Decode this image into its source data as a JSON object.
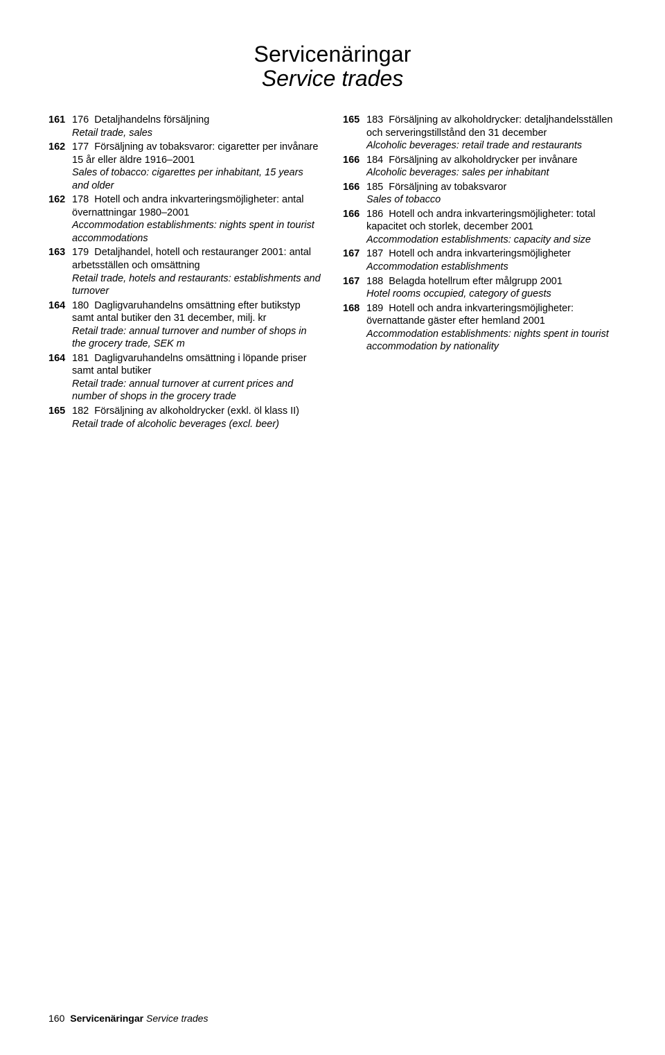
{
  "title": {
    "main": "Servicenäringar",
    "sub": "Service trades"
  },
  "left_column": [
    {
      "page": "161",
      "num": "176",
      "title": "Detaljhandelns försäljning",
      "sub": "Retail trade, sales"
    },
    {
      "page": "162",
      "num": "177",
      "title": "Försäljning av tobaksvaror: cigaretter per invånare 15 år eller äldre 1916–2001",
      "sub": "Sales of tobacco: cigarettes per inhabitant, 15 years and older"
    },
    {
      "page": "162",
      "num": "178",
      "title": "Hotell och andra inkvarteringsmöjligheter: antal övernattningar 1980–2001",
      "sub": "Accommodation establishments: nights spent in tourist accommodations"
    },
    {
      "page": "163",
      "num": "179",
      "title": "Detaljhandel, hotell och restauranger 2001: antal arbetsställen och omsättning",
      "sub": "Retail trade, hotels and restaurants: establishments and turnover"
    },
    {
      "page": "164",
      "num": "180",
      "title": "Dagligvaruhandelns omsättning efter butikstyp samt antal butiker den 31 december, milj. kr",
      "sub": "Retail trade: annual turnover and number of shops in the grocery trade, SEK m"
    },
    {
      "page": "164",
      "num": "181",
      "title": "Dagligvaruhandelns omsättning i löpande priser samt antal butiker",
      "sub": "Retail trade: annual turnover at current prices and number of shops in the grocery trade"
    },
    {
      "page": "165",
      "num": "182",
      "title": "Försäljning av alkoholdrycker (exkl. öl klass II)",
      "sub": "Retail trade of alcoholic beverages (excl. beer)"
    }
  ],
  "right_column": [
    {
      "page": "165",
      "num": "183",
      "title": "Försäljning av alkoholdrycker: detaljhandelsställen och serveringstillstånd den 31 december",
      "sub": "Alcoholic beverages: retail trade and restaurants"
    },
    {
      "page": "166",
      "num": "184",
      "title": "Försäljning av alkoholdrycker per invånare",
      "sub": "Alcoholic beverages: sales per inhabitant"
    },
    {
      "page": "166",
      "num": "185",
      "title": "Försäljning av tobaksvaror",
      "sub": "Sales of tobacco"
    },
    {
      "page": "166",
      "num": "186",
      "title": "Hotell och andra inkvarteringsmöjligheter: total kapacitet och storlek, december 2001",
      "sub": "Accommodation establishments: capacity and size"
    },
    {
      "page": "167",
      "num": "187",
      "title": "Hotell och andra inkvarteringsmöjligheter",
      "sub": "Accommodation establishments"
    },
    {
      "page": "167",
      "num": "188",
      "title": "Belagda hotellrum efter målgrupp 2001",
      "sub": "Hotel rooms occupied, category of guests"
    },
    {
      "page": "168",
      "num": "189",
      "title": "Hotell och andra inkvarteringsmöjligheter: övernattande gäster efter hemland 2001",
      "sub": "Accommodation establishments: nights spent in tourist accommodation by nationality"
    }
  ],
  "footer": {
    "page_number": "160",
    "section": "Servicenäringar",
    "section_sub": "Service trades"
  }
}
